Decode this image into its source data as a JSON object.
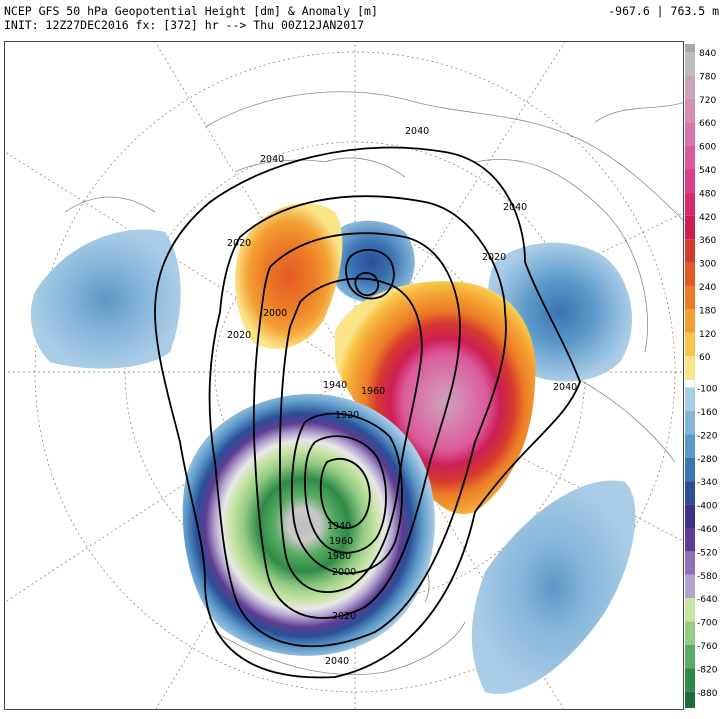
{
  "header": {
    "title": "NCEP GFS 50 hPa Geopotential Height [dm] & Anomaly [m]",
    "init": "INIT: 12Z27DEC2016 fx: [372] hr --> Thu 00Z12JAN2017",
    "range": "-967.6 | 763.5 m"
  },
  "colorbar": {
    "positive_ticks": [
      "840",
      "780",
      "720",
      "660",
      "600",
      "540",
      "480",
      "420",
      "360",
      "300",
      "240",
      "180",
      "120",
      "60"
    ],
    "negative_ticks": [
      "-100",
      "-160",
      "-220",
      "-280",
      "-340",
      "-400",
      "-460",
      "-520",
      "-580",
      "-640",
      "-700",
      "-760",
      "-820",
      "-880"
    ],
    "positive_colors": [
      "#bdbdbd",
      "#c9a3b8",
      "#d58db3",
      "#d774a8",
      "#dc5a9a",
      "#dd3f86",
      "#d72a6e",
      "#cc1e55",
      "#d63a2e",
      "#e35a26",
      "#ec7c27",
      "#f3a033",
      "#f8c548",
      "#fbe387"
    ],
    "negative_colors": [
      "#a9cde6",
      "#85b6da",
      "#5a98c8",
      "#3a74b2",
      "#2a4f98",
      "#3b3486",
      "#5d3d91",
      "#8e71b5",
      "#b3a2cf",
      "#c8e3a2",
      "#94cc84",
      "#5aae62",
      "#2f8a48",
      "#1e6a39"
    ]
  },
  "contours": {
    "labels": [
      "2040",
      "2040",
      "2040",
      "2040",
      "2040",
      "2020",
      "2020",
      "2020",
      "2020",
      "2000",
      "2000",
      "1980",
      "1960",
      "1960",
      "1940",
      "1940",
      "1920"
    ]
  },
  "colors": {
    "contour": "#000000",
    "coastline": "#8a8a8a",
    "graticule": "#8c7a4a"
  }
}
